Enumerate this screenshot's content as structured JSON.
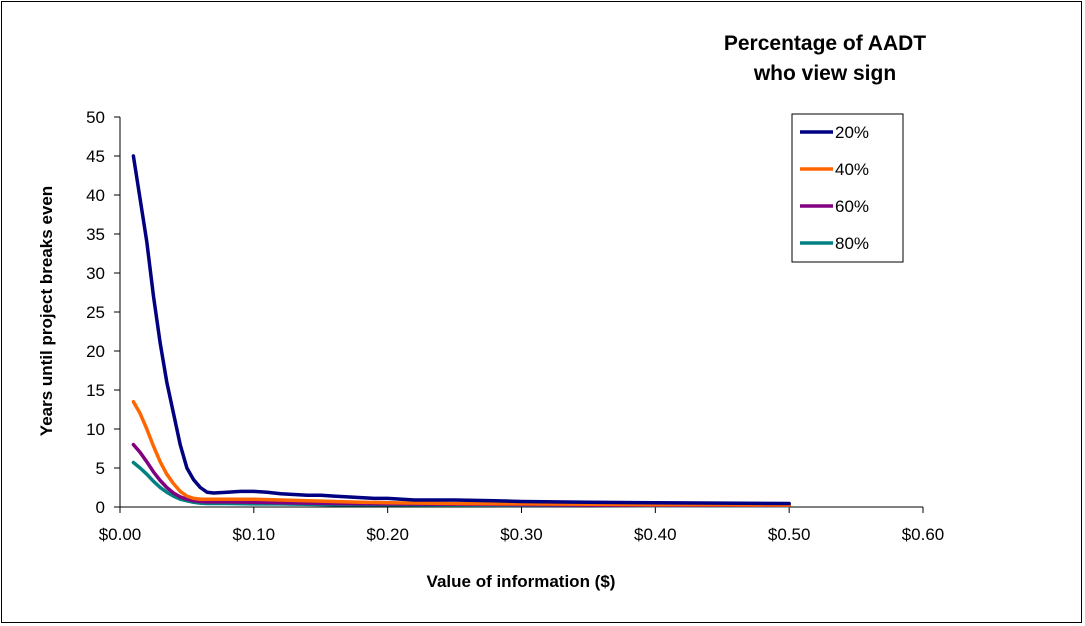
{
  "chart_data": {
    "type": "line",
    "title": "",
    "legend_title": [
      "Percentage of AADT",
      "who view sign"
    ],
    "legend_position": "top-right",
    "xlabel": "Value of information ($)",
    "ylabel": "Years until project breaks even",
    "xlim": [
      0,
      0.6
    ],
    "ylim": [
      0,
      50
    ],
    "grid": false,
    "x_ticks": [
      "$0.00",
      "$0.10",
      "$0.20",
      "$0.30",
      "$0.40",
      "$0.50",
      "$0.60"
    ],
    "x_tick_values": [
      0,
      0.1,
      0.2,
      0.3,
      0.4,
      0.5,
      0.6
    ],
    "y_ticks": [
      "0",
      "5",
      "10",
      "15",
      "20",
      "25",
      "30",
      "35",
      "40",
      "45",
      "50"
    ],
    "y_tick_values": [
      0,
      5,
      10,
      15,
      20,
      25,
      30,
      35,
      40,
      45,
      50
    ],
    "series": [
      {
        "name": "20%",
        "color": "#000080",
        "x": [
          0.01,
          0.015,
          0.02,
          0.025,
          0.03,
          0.035,
          0.04,
          0.045,
          0.05,
          0.055,
          0.06,
          0.065,
          0.07,
          0.08,
          0.09,
          0.1,
          0.11,
          0.12,
          0.13,
          0.14,
          0.15,
          0.16,
          0.17,
          0.18,
          0.19,
          0.2,
          0.22,
          0.25,
          0.28,
          0.3,
          0.35,
          0.4,
          0.45,
          0.5
        ],
        "y": [
          45,
          39.5,
          34,
          27,
          21,
          16,
          12,
          8,
          5,
          3.5,
          2.5,
          1.9,
          1.8,
          1.9,
          2.0,
          2.0,
          1.9,
          1.7,
          1.6,
          1.5,
          1.5,
          1.4,
          1.3,
          1.2,
          1.1,
          1.1,
          0.9,
          0.9,
          0.8,
          0.7,
          0.6,
          0.55,
          0.5,
          0.45
        ]
      },
      {
        "name": "40%",
        "color": "#ff6600",
        "x": [
          0.01,
          0.015,
          0.02,
          0.025,
          0.03,
          0.035,
          0.04,
          0.045,
          0.05,
          0.055,
          0.06,
          0.065,
          0.07,
          0.08,
          0.09,
          0.1,
          0.12,
          0.14,
          0.16,
          0.18,
          0.2,
          0.25,
          0.3,
          0.35,
          0.4,
          0.45,
          0.5
        ],
        "y": [
          13.5,
          12,
          10,
          7.8,
          5.8,
          4.2,
          3.0,
          2.0,
          1.4,
          1.1,
          1.0,
          1.0,
          1.0,
          1.0,
          1.0,
          1.0,
          0.9,
          0.8,
          0.7,
          0.6,
          0.55,
          0.45,
          0.4,
          0.35,
          0.3,
          0.3,
          0.25
        ]
      },
      {
        "name": "60%",
        "color": "#800080",
        "x": [
          0.01,
          0.015,
          0.02,
          0.025,
          0.03,
          0.035,
          0.04,
          0.045,
          0.05,
          0.055,
          0.06,
          0.065,
          0.07,
          0.08,
          0.1,
          0.12,
          0.14,
          0.16,
          0.2,
          0.25,
          0.3,
          0.35,
          0.4,
          0.45,
          0.5
        ],
        "y": [
          8,
          7,
          5.8,
          4.5,
          3.4,
          2.5,
          1.8,
          1.3,
          1.0,
          0.8,
          0.7,
          0.65,
          0.65,
          0.65,
          0.6,
          0.55,
          0.5,
          0.45,
          0.4,
          0.35,
          0.3,
          0.25,
          0.2,
          0.2,
          0.2
        ]
      },
      {
        "name": "80%",
        "color": "#008080",
        "x": [
          0.01,
          0.015,
          0.02,
          0.025,
          0.03,
          0.035,
          0.04,
          0.045,
          0.05,
          0.055,
          0.06,
          0.065,
          0.07,
          0.08,
          0.1,
          0.12,
          0.14,
          0.16,
          0.2,
          0.25,
          0.3,
          0.35,
          0.4,
          0.45,
          0.5
        ],
        "y": [
          5.7,
          5.0,
          4.2,
          3.3,
          2.5,
          1.9,
          1.4,
          1.0,
          0.8,
          0.6,
          0.5,
          0.45,
          0.45,
          0.45,
          0.4,
          0.4,
          0.35,
          0.3,
          0.3,
          0.25,
          0.2,
          0.2,
          0.15,
          0.15,
          0.15
        ]
      }
    ]
  }
}
